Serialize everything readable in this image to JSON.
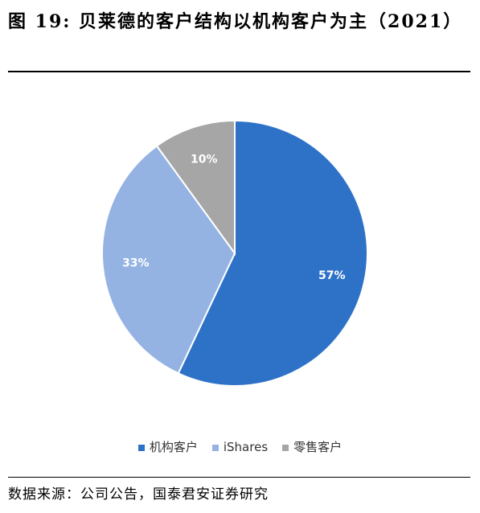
{
  "figure": {
    "title": "图 19: 贝莱德的客户结构以机构客户为主（2021）",
    "source": "数据来源：公司公告，国泰君安证券研究"
  },
  "chart_data": {
    "type": "pie",
    "title": "",
    "slices": [
      {
        "label": "机构客户",
        "value": 57,
        "display": "57%",
        "color": "#2e72c8"
      },
      {
        "label": "iShares",
        "value": 33,
        "display": "33%",
        "color": "#94b3e3"
      },
      {
        "label": "零售客户",
        "value": 10,
        "display": "10%",
        "color": "#a6a6a6"
      }
    ],
    "legend_position": "bottom"
  }
}
